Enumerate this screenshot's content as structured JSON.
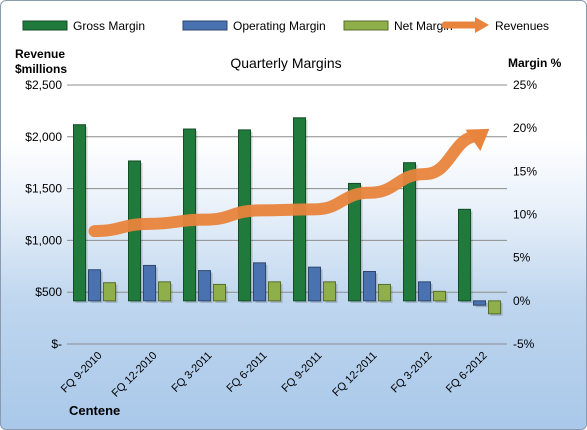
{
  "chart_data": {
    "type": "bar",
    "title": "Quarterly Margins",
    "company": "Centene",
    "left_axis_label_line1": "Revenue",
    "left_axis_label_line2": "$millions",
    "right_axis_label": "Margin %",
    "categories": [
      "FQ 9-2010",
      "FQ 12-2010",
      "FQ 3-2011",
      "FQ 6-2011",
      "FQ 9-2011",
      "FQ 12-2011",
      "FQ 3-2012",
      "FQ 6-2012"
    ],
    "left_ticks": [
      "$-",
      "$500",
      "$1,000",
      "$1,500",
      "$2,000",
      "$2,500"
    ],
    "left_ylim": [
      0,
      2500
    ],
    "right_ticks": [
      "-5%",
      "0%",
      "5%",
      "10%",
      "15%",
      "20%",
      "25%"
    ],
    "right_ylim": [
      -5,
      25
    ],
    "grid": true,
    "legend_position": "top",
    "series": [
      {
        "name": "Gross Margin",
        "axis": "right",
        "kind": "bar",
        "color": "#1f7a3c",
        "values": [
          20.4,
          16.2,
          19.9,
          19.8,
          21.2,
          13.6,
          16.0,
          10.6
        ]
      },
      {
        "name": "Operating Margin",
        "axis": "right",
        "kind": "bar",
        "color": "#4a72b0",
        "values": [
          3.6,
          4.1,
          3.5,
          4.4,
          3.9,
          3.4,
          2.2,
          -0.5
        ]
      },
      {
        "name": "Net Margin",
        "axis": "right",
        "kind": "bar",
        "color": "#8faf4a",
        "values": [
          2.1,
          2.2,
          1.9,
          2.2,
          2.2,
          1.9,
          1.1,
          -1.5
        ]
      },
      {
        "name": "Revenues",
        "axis": "left",
        "kind": "line",
        "color": "#e8843c",
        "values": [
          1090,
          1160,
          1200,
          1290,
          1300,
          1460,
          1640,
          2010
        ]
      }
    ]
  }
}
